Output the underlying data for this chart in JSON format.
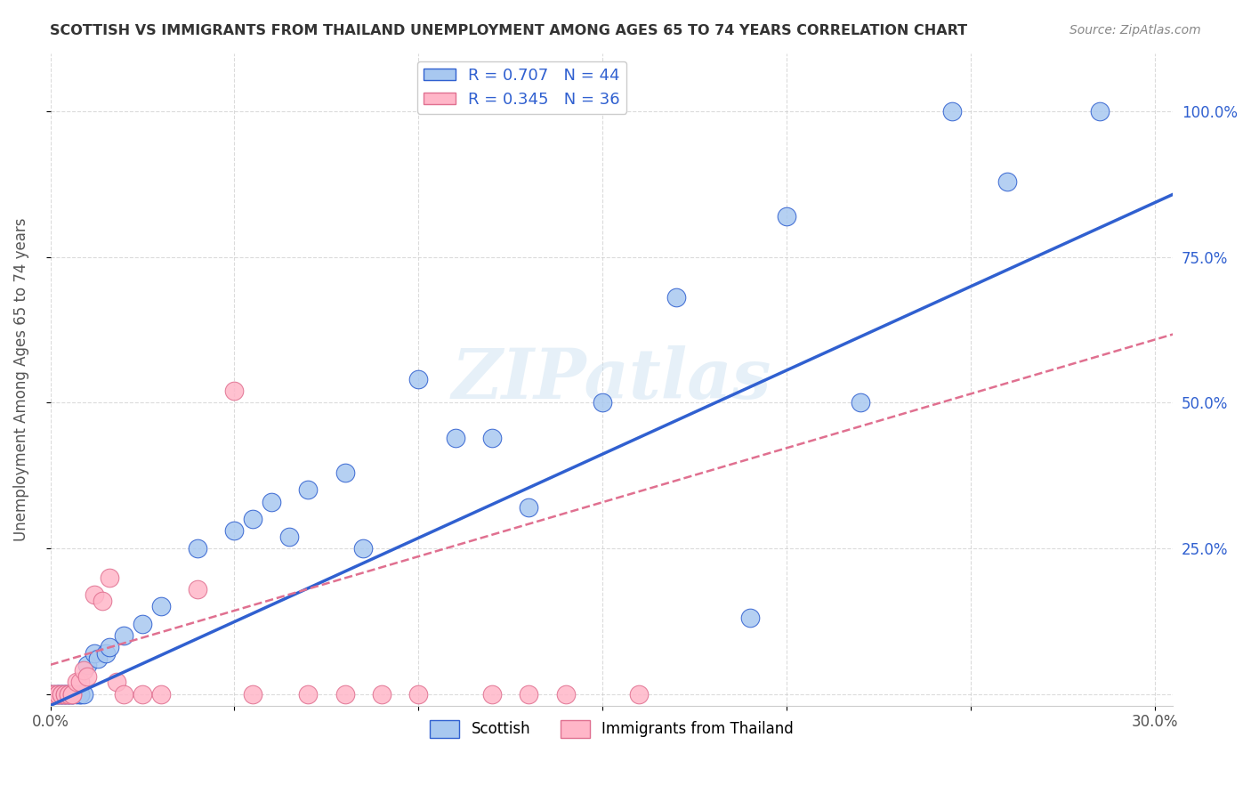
{
  "title": "SCOTTISH VS IMMIGRANTS FROM THAILAND UNEMPLOYMENT AMONG AGES 65 TO 74 YEARS CORRELATION CHART",
  "source": "Source: ZipAtlas.com",
  "ylabel": "Unemployment Among Ages 65 to 74 years",
  "xlim": [
    0.0,
    0.305
  ],
  "ylim": [
    -0.02,
    1.1
  ],
  "xticks": [
    0.0,
    0.05,
    0.1,
    0.15,
    0.2,
    0.25,
    0.3
  ],
  "xticklabels": [
    "0.0%",
    "",
    "",
    "",
    "",
    "",
    "30.0%"
  ],
  "yticks": [
    0.0,
    0.25,
    0.5,
    0.75,
    1.0
  ],
  "yticklabels": [
    "",
    "25.0%",
    "50.0%",
    "75.0%",
    "100.0%"
  ],
  "scottish_R": 0.707,
  "scottish_N": 44,
  "thailand_R": 0.345,
  "thailand_N": 36,
  "scottish_color": "#a8c8f0",
  "scottish_line_color": "#3060d0",
  "thailand_color": "#ffb6c8",
  "thailand_line_color": "#e07090",
  "watermark": "ZIPatlas",
  "scottish_x": [
    0.0,
    0.001,
    0.002,
    0.002,
    0.003,
    0.003,
    0.004,
    0.004,
    0.005,
    0.005,
    0.006,
    0.006,
    0.007,
    0.008,
    0.008,
    0.009,
    0.01,
    0.012,
    0.013,
    0.015,
    0.016,
    0.02,
    0.025,
    0.03,
    0.04,
    0.05,
    0.055,
    0.06,
    0.065,
    0.07,
    0.08,
    0.085,
    0.1,
    0.11,
    0.12,
    0.13,
    0.15,
    0.17,
    0.19,
    0.2,
    0.22,
    0.245,
    0.26,
    0.285
  ],
  "scottish_y": [
    0.0,
    0.0,
    0.0,
    0.0,
    0.0,
    0.0,
    0.0,
    0.0,
    0.0,
    0.0,
    0.0,
    0.0,
    0.0,
    0.0,
    0.0,
    0.0,
    0.05,
    0.07,
    0.06,
    0.07,
    0.08,
    0.1,
    0.12,
    0.15,
    0.25,
    0.28,
    0.3,
    0.33,
    0.27,
    0.35,
    0.38,
    0.25,
    0.54,
    0.44,
    0.44,
    0.32,
    0.5,
    0.68,
    0.13,
    0.82,
    0.5,
    1.0,
    0.88,
    1.0
  ],
  "thailand_x": [
    0.0,
    0.0,
    0.001,
    0.001,
    0.002,
    0.002,
    0.003,
    0.003,
    0.004,
    0.004,
    0.005,
    0.005,
    0.006,
    0.006,
    0.007,
    0.008,
    0.009,
    0.01,
    0.012,
    0.014,
    0.016,
    0.018,
    0.02,
    0.025,
    0.03,
    0.04,
    0.05,
    0.055,
    0.07,
    0.08,
    0.09,
    0.1,
    0.12,
    0.13,
    0.14,
    0.16
  ],
  "thailand_y": [
    0.0,
    0.0,
    0.0,
    0.0,
    0.0,
    0.0,
    0.0,
    0.0,
    0.0,
    0.0,
    0.0,
    0.0,
    0.0,
    0.0,
    0.02,
    0.02,
    0.04,
    0.03,
    0.17,
    0.16,
    0.2,
    0.02,
    0.0,
    0.0,
    0.0,
    0.18,
    0.52,
    0.0,
    0.0,
    0.0,
    0.0,
    0.0,
    0.0,
    0.0,
    0.0,
    0.0
  ],
  "scot_slope": 2.877,
  "scot_intercept": -0.02,
  "thai_slope": 1.86,
  "thai_intercept": 0.05
}
